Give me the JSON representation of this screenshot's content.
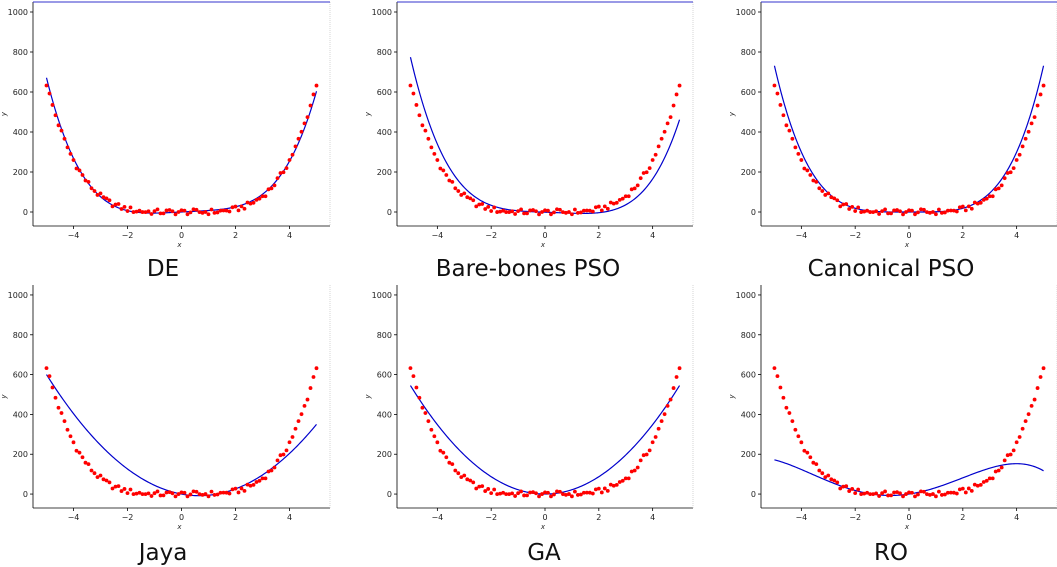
{
  "chart_data": [
    {
      "type": "scatter",
      "title": "DE",
      "xlabel": "x",
      "ylabel": "y",
      "xticks": [
        "−4",
        "−2",
        "0",
        "2",
        "4"
      ],
      "yticks": [
        "0",
        "200",
        "400",
        "600",
        "800",
        "1000"
      ],
      "xlim": [
        -5.5,
        5.5
      ],
      "ylim": [
        -70,
        1050
      ],
      "grid": false,
      "series": [
        {
          "kind": "points",
          "color": "#ff0000"
        },
        {
          "kind": "fit",
          "color": "#0000cc",
          "poly": [
            0,
            7.0,
            0,
            -0.55,
            1.02
          ]
        }
      ]
    },
    {
      "type": "scatter",
      "title": "Bare-bones PSO",
      "xlabel": "x",
      "ylabel": "y",
      "xticks": [
        "−4",
        "−2",
        "0",
        "2",
        "4"
      ],
      "yticks": [
        "0",
        "200",
        "400",
        "600",
        "800",
        "1000"
      ],
      "xlim": [
        -5.5,
        5.5
      ],
      "ylim": [
        -70,
        1050
      ],
      "grid": false,
      "series": [
        {
          "kind": "points",
          "color": "#ff0000"
        },
        {
          "kind": "fit",
          "color": "#0000cc",
          "poly": [
            -1,
            -5.0,
            0,
            -1.05,
            0.99
          ]
        }
      ]
    },
    {
      "type": "scatter",
      "title": "Canonical PSO",
      "xlabel": "x",
      "ylabel": "y",
      "xticks": [
        "−4",
        "−2",
        "0",
        "2",
        "4"
      ],
      "yticks": [
        "0",
        "200",
        "400",
        "600",
        "800",
        "1000"
      ],
      "xlim": [
        -5.5,
        5.5
      ],
      "ylim": [
        -70,
        1050
      ],
      "grid": false,
      "series": [
        {
          "kind": "points",
          "color": "#ff0000"
        },
        {
          "kind": "fit",
          "color": "#0000cc",
          "poly": [
            0,
            0,
            0,
            0,
            1.17
          ]
        }
      ]
    },
    {
      "type": "scatter",
      "title": "Jaya",
      "xlabel": "x",
      "ylabel": "y",
      "xticks": [
        "−4",
        "−2",
        "0",
        "2",
        "4"
      ],
      "yticks": [
        "0",
        "200",
        "400",
        "600",
        "800",
        "1000"
      ],
      "xlim": [
        -5.5,
        5.5
      ],
      "ylim": [
        -70,
        1050
      ],
      "grid": false,
      "series": [
        {
          "kind": "points",
          "color": "#ff0000"
        },
        {
          "kind": "fit",
          "color": "#0000cc",
          "poly": [
            0,
            -25,
            19,
            0,
            0
          ]
        }
      ]
    },
    {
      "type": "scatter",
      "title": "GA",
      "xlabel": "x",
      "ylabel": "y",
      "xticks": [
        "−4",
        "−2",
        "0",
        "2",
        "4"
      ],
      "yticks": [
        "0",
        "200",
        "400",
        "600",
        "800",
        "1000"
      ],
      "xlim": [
        -5.5,
        5.5
      ],
      "ylim": [
        -70,
        1050
      ],
      "grid": false,
      "series": [
        {
          "kind": "points",
          "color": "#ff0000"
        },
        {
          "kind": "fit",
          "color": "#0000cc",
          "poly": [
            0,
            0,
            21.8,
            0,
            0
          ]
        }
      ]
    },
    {
      "type": "scatter",
      "title": "RO",
      "xlabel": "x",
      "ylabel": "y",
      "xticks": [
        "−4",
        "−2",
        "0",
        "2",
        "4"
      ],
      "yticks": [
        "0",
        "200",
        "400",
        "600",
        "800",
        "1000"
      ],
      "xlim": [
        -5.5,
        5.5
      ],
      "ylim": [
        -70,
        1050
      ],
      "grid": false,
      "series": [
        {
          "kind": "points",
          "color": "#ff0000"
        },
        {
          "kind": "fit",
          "color": "#0000cc",
          "poly": [
            0,
            19.98,
            13.68,
            -1.02,
            -0.316
          ]
        }
      ]
    }
  ],
  "points": {
    "x_range": [
      -5,
      5
    ],
    "count": 91,
    "base": {
      "a": 1.05,
      "b": -0.6,
      "c": 0
    },
    "noise_amplitude": 14
  },
  "colors": {
    "points": "#ff0000",
    "fit": "#0000cc",
    "axes": "#000000",
    "top_rule": "#3333cc"
  }
}
